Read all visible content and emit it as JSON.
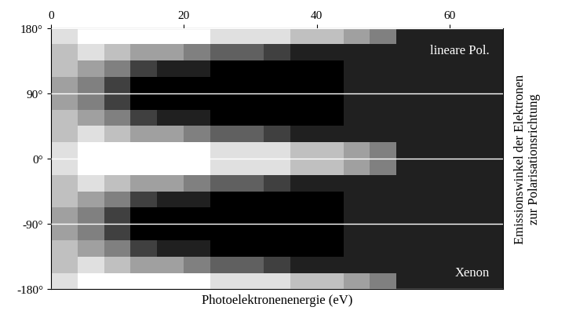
{
  "chart_data": {
    "type": "heatmap",
    "x_label": "Photoelektronenenergie (eV)",
    "y_label": "Emissionswinkel der Elektronen\nzur Polarisationsrichtung",
    "annotations": [
      "lineare Pol.",
      "Xenon"
    ],
    "color": "gray",
    "value_range": [
      0,
      8
    ],
    "grid": true,
    "xlim": [
      0,
      68
    ],
    "xticks": [
      0,
      20,
      40,
      60
    ],
    "ylim": [
      -180,
      180
    ],
    "yticks": [
      {
        "value": 180,
        "label": "180°"
      },
      {
        "value": 90,
        "label": "90°"
      },
      {
        "value": 0,
        "label": "0°"
      },
      {
        "value": -90,
        "label": "-90°"
      },
      {
        "value": -180,
        "label": "-180°"
      }
    ],
    "x_bins": [
      0,
      4,
      8,
      12,
      16,
      20,
      24,
      28,
      32,
      36,
      40,
      44,
      48,
      52,
      56,
      60,
      64,
      68
    ],
    "y_bins": [
      -180,
      -157.5,
      -135,
      -112.5,
      -90,
      -67.5,
      -45,
      -22.5,
      0,
      22.5,
      45,
      67.5,
      90,
      112.5,
      135,
      157.5,
      180
    ],
    "cells": [
      [
        7,
        8,
        8,
        8,
        8,
        8,
        7,
        7,
        7,
        6,
        6,
        5,
        4,
        1,
        1,
        1,
        1
      ],
      [
        6,
        7,
        6,
        5,
        5,
        4,
        3,
        3,
        2,
        1,
        1,
        1,
        1,
        1,
        1,
        1,
        1
      ],
      [
        6,
        5,
        4,
        2,
        1,
        1,
        0,
        0,
        0,
        0,
        0,
        1,
        1,
        1,
        1,
        1,
        1
      ],
      [
        5,
        4,
        2,
        0,
        0,
        0,
        0,
        0,
        0,
        0,
        0,
        1,
        1,
        1,
        1,
        1,
        1
      ],
      [
        5,
        4,
        2,
        0,
        0,
        0,
        0,
        0,
        0,
        0,
        0,
        1,
        1,
        1,
        1,
        1,
        1
      ],
      [
        6,
        5,
        4,
        2,
        1,
        1,
        0,
        0,
        0,
        0,
        0,
        1,
        1,
        1,
        1,
        1,
        1
      ],
      [
        6,
        7,
        6,
        5,
        5,
        4,
        3,
        3,
        2,
        1,
        1,
        1,
        1,
        1,
        1,
        1,
        1
      ],
      [
        7,
        8,
        8,
        8,
        8,
        8,
        7,
        7,
        7,
        6,
        6,
        5,
        4,
        1,
        1,
        1,
        1
      ],
      [
        7,
        8,
        8,
        8,
        8,
        8,
        7,
        7,
        7,
        6,
        6,
        5,
        4,
        1,
        1,
        1,
        1
      ],
      [
        6,
        7,
        6,
        5,
        5,
        4,
        3,
        3,
        2,
        1,
        1,
        1,
        1,
        1,
        1,
        1,
        1
      ],
      [
        6,
        5,
        4,
        2,
        1,
        1,
        0,
        0,
        0,
        0,
        0,
        1,
        1,
        1,
        1,
        1,
        1
      ],
      [
        5,
        4,
        2,
        0,
        0,
        0,
        0,
        0,
        0,
        0,
        0,
        1,
        1,
        1,
        1,
        1,
        1
      ],
      [
        5,
        4,
        2,
        0,
        0,
        0,
        0,
        0,
        0,
        0,
        0,
        1,
        1,
        1,
        1,
        1,
        1
      ],
      [
        6,
        5,
        4,
        2,
        1,
        1,
        0,
        0,
        0,
        0,
        0,
        1,
        1,
        1,
        1,
        1,
        1
      ],
      [
        6,
        7,
        6,
        5,
        5,
        4,
        3,
        3,
        2,
        1,
        1,
        1,
        1,
        1,
        1,
        1,
        1
      ],
      [
        7,
        8,
        8,
        8,
        8,
        8,
        7,
        7,
        7,
        6,
        6,
        5,
        4,
        1,
        1,
        1,
        1
      ]
    ]
  }
}
